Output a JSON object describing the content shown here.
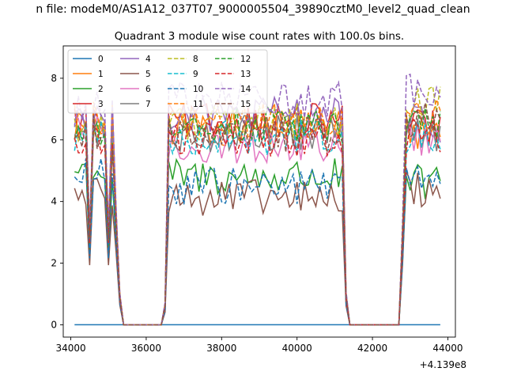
{
  "figure": {
    "suptitle": "n file: modeM0/AS1A12_037T07_9000005504_39890cztM0_level2_quad_clean",
    "title": "Quadrant 3 module wise count rates with 100.0s bins.",
    "offset_text": "+4.139e8"
  },
  "chart_data": {
    "type": "line",
    "title": "Quadrant 3 module wise count rates with 100.0s bins.",
    "xlabel": "",
    "ylabel": "",
    "x_offset": 413900000,
    "xlim": [
      33800,
      44200
    ],
    "ylim": [
      -0.4,
      9.05
    ],
    "xticks": [
      34000,
      36000,
      38000,
      40000,
      42000,
      44000
    ],
    "xtick_labels": [
      "34000",
      "36000",
      "38000",
      "40000",
      "42000",
      "44000"
    ],
    "yticks": [
      0,
      2,
      4,
      6,
      8
    ],
    "ytick_labels": [
      "0",
      "2",
      "4",
      "6",
      "8"
    ],
    "grid": false,
    "legend": {
      "placement": "top-left",
      "columns": 4
    },
    "segments": [
      {
        "x_start": 34100,
        "x_end": 35300,
        "points": 13
      },
      {
        "x_start": 36500,
        "x_end": 41300,
        "points": 49
      },
      {
        "x_start": 42800,
        "x_end": 43800,
        "points": 11
      }
    ],
    "zero_between": [
      [
        35400,
        36400
      ],
      [
        41400,
        42700
      ]
    ],
    "series": [
      {
        "name": "0",
        "color": "#1f77b4",
        "dash": "solid",
        "levels": [
          0,
          0,
          0
        ]
      },
      {
        "name": "1",
        "color": "#ff7f0e",
        "dash": "solid",
        "levels": [
          6.5,
          6.4,
          6.3
        ]
      },
      {
        "name": "2",
        "color": "#2ca02c",
        "dash": "solid",
        "levels": [
          5.0,
          4.8,
          4.6
        ]
      },
      {
        "name": "3",
        "color": "#d62728",
        "dash": "solid",
        "levels": [
          6.6,
          6.6,
          6.4
        ]
      },
      {
        "name": "4",
        "color": "#9467bd",
        "dash": "solid",
        "levels": [
          6.8,
          6.8,
          6.5
        ]
      },
      {
        "name": "5",
        "color": "#8c564b",
        "dash": "solid",
        "levels": [
          4.3,
          4.1,
          4.4
        ]
      },
      {
        "name": "6",
        "color": "#e377c2",
        "dash": "solid",
        "levels": [
          6.2,
          5.8,
          6.0
        ]
      },
      {
        "name": "7",
        "color": "#7f7f7f",
        "dash": "solid",
        "levels": [
          6.3,
          6.2,
          6.2
        ]
      },
      {
        "name": "8",
        "color": "#bcbd22",
        "dash": "dashed",
        "levels": [
          6.4,
          6.6,
          7.2
        ]
      },
      {
        "name": "9",
        "color": "#17becf",
        "dash": "dashed",
        "levels": [
          6.1,
          6.1,
          6.1
        ]
      },
      {
        "name": "10",
        "color": "#1f77b4",
        "dash": "dashed",
        "levels": [
          4.8,
          4.5,
          4.7
        ]
      },
      {
        "name": "11",
        "color": "#ff7f0e",
        "dash": "dashed",
        "levels": [
          6.7,
          6.6,
          6.8
        ]
      },
      {
        "name": "12",
        "color": "#2ca02c",
        "dash": "dashed",
        "levels": [
          6.3,
          6.5,
          6.5
        ]
      },
      {
        "name": "13",
        "color": "#d62728",
        "dash": "dashed",
        "levels": [
          5.9,
          6.0,
          6.1
        ]
      },
      {
        "name": "14",
        "color": "#9467bd",
        "dash": "dashed",
        "levels": [
          7.0,
          7.3,
          7.6
        ]
      },
      {
        "name": "15",
        "color": "#8c564b",
        "dash": "dashed",
        "levels": [
          6.2,
          6.2,
          6.6
        ]
      }
    ]
  }
}
